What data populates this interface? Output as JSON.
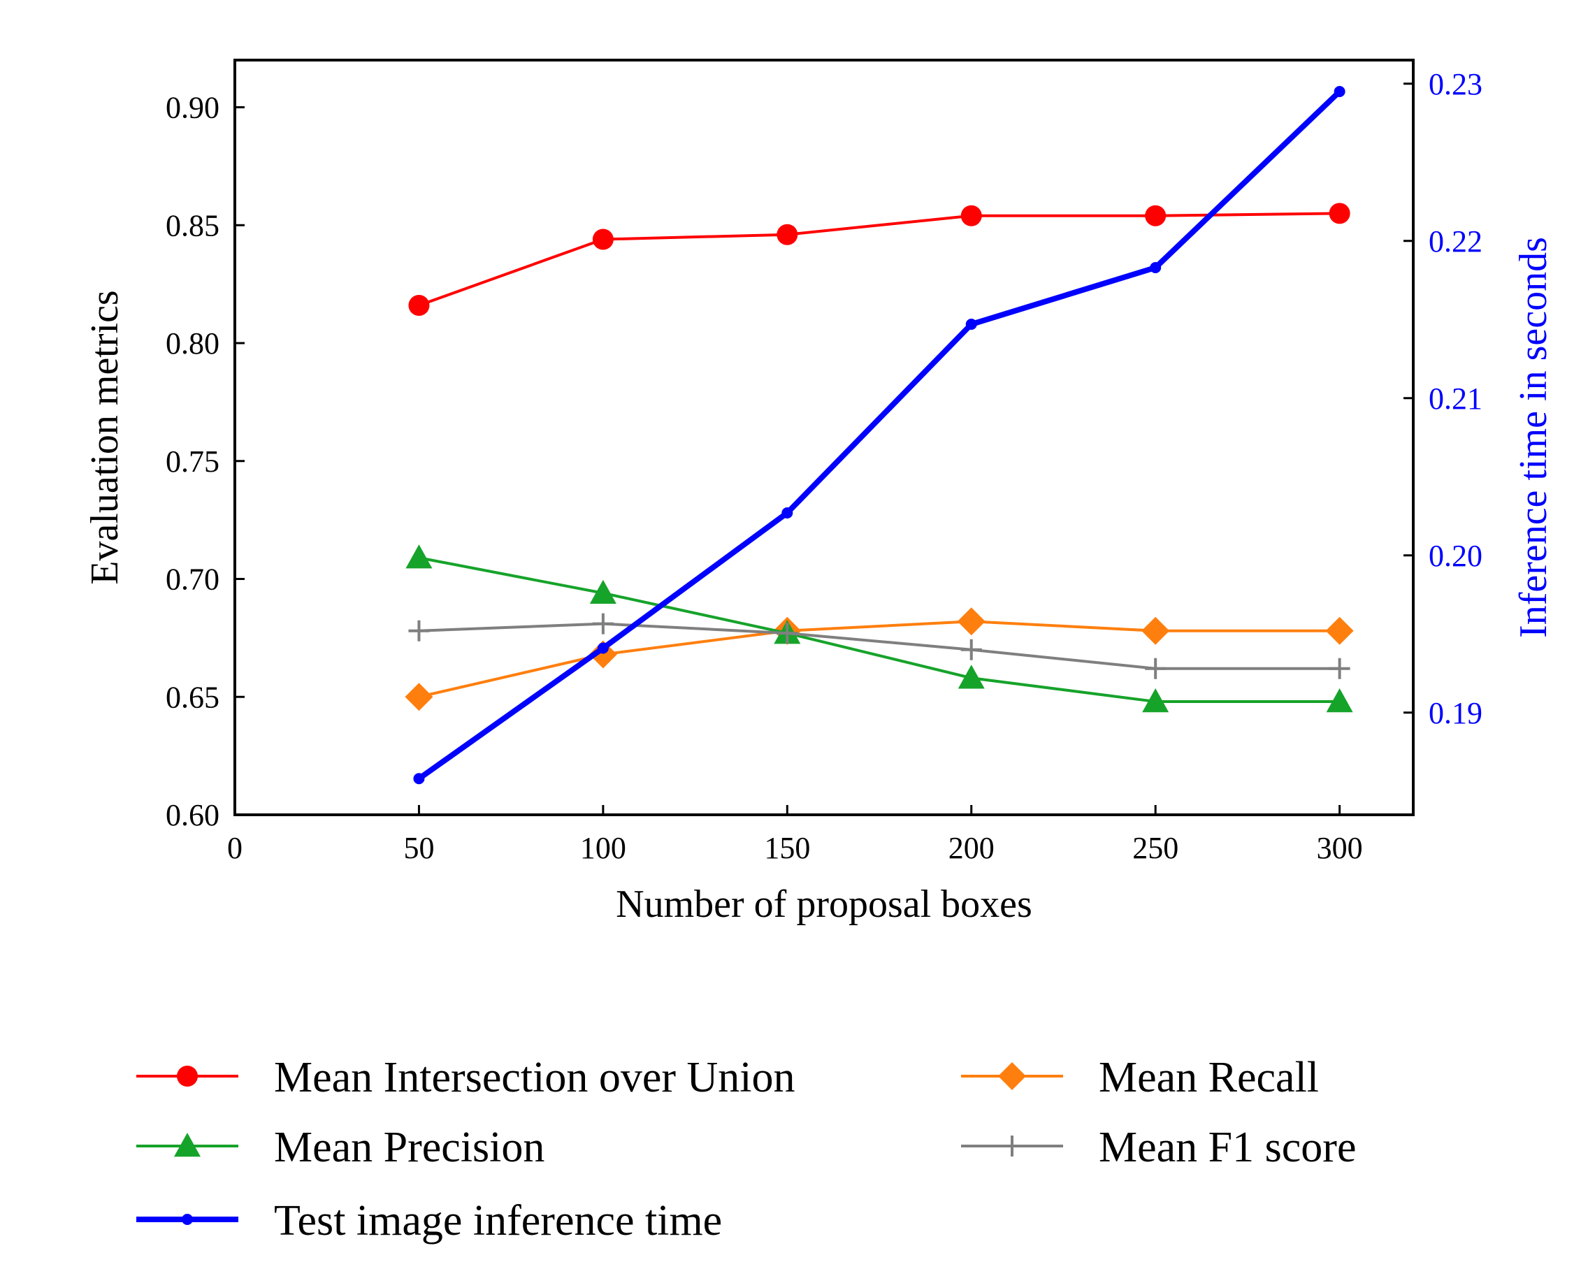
{
  "chart_data": {
    "type": "line",
    "x": [
      50,
      100,
      150,
      200,
      250,
      300
    ],
    "xlabel": "Number of proposal boxes",
    "xlim": [
      0,
      320
    ],
    "xticks": [
      0,
      50,
      100,
      150,
      200,
      250,
      300
    ],
    "xtick_labels": [
      "0",
      "50",
      "100",
      "150",
      "200",
      "250",
      "300"
    ],
    "ylabel": "Evaluation metrics",
    "ylim": [
      0.6,
      0.92
    ],
    "yticks": [
      0.6,
      0.65,
      0.7,
      0.75,
      0.8,
      0.85,
      0.9
    ],
    "ytick_labels": [
      "0.60",
      "0.65",
      "0.70",
      "0.75",
      "0.80",
      "0.85",
      "0.90"
    ],
    "y2label": "Inference time in seconds",
    "y2lim": [
      0.1835,
      0.2315
    ],
    "y2ticks": [
      0.19,
      0.2,
      0.21,
      0.22,
      0.23
    ],
    "y2tick_labels": [
      "0.19",
      "0.20",
      "0.21",
      "0.22",
      "0.23"
    ],
    "y2color": "#0000ff",
    "legend_position": "below",
    "series": [
      {
        "name": "Mean Intersection over Union",
        "axis": "left",
        "color": "#ff0000",
        "marker": "circle",
        "values": [
          0.816,
          0.844,
          0.846,
          0.854,
          0.854,
          0.855
        ]
      },
      {
        "name": "Mean Recall",
        "axis": "left",
        "color": "#ff7f0e",
        "marker": "diamond",
        "values": [
          0.65,
          0.668,
          0.678,
          0.682,
          0.678,
          0.678
        ]
      },
      {
        "name": "Mean Precision",
        "axis": "left",
        "color": "#16a32a",
        "marker": "triangle",
        "values": [
          0.709,
          0.694,
          0.677,
          0.658,
          0.648,
          0.648
        ]
      },
      {
        "name": "Mean F1 score",
        "axis": "left",
        "color": "#7f7f7f",
        "marker": "plus",
        "values": [
          0.678,
          0.681,
          0.677,
          0.67,
          0.662,
          0.662
        ]
      },
      {
        "name": "Test image inference time",
        "axis": "right",
        "color": "#0000ff",
        "marker": "dot",
        "values": [
          0.1858,
          0.1941,
          0.2027,
          0.2147,
          0.2183,
          0.2295
        ]
      }
    ]
  }
}
